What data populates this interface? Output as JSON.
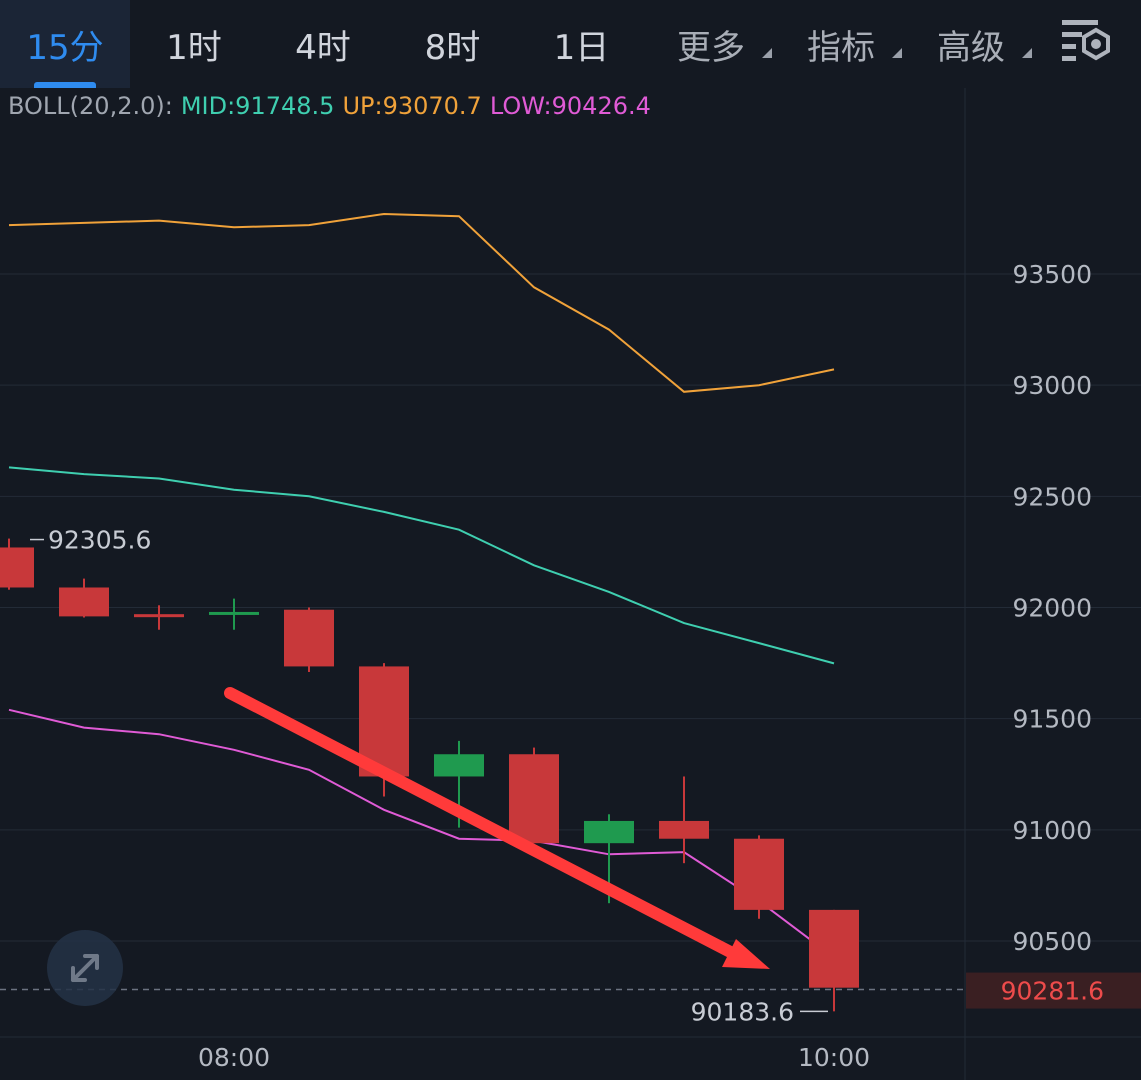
{
  "tabs": [
    {
      "label": "15分",
      "active": true,
      "caret": false
    },
    {
      "label": "1时",
      "active": false,
      "caret": false
    },
    {
      "label": "4时",
      "active": false,
      "caret": false
    },
    {
      "label": "8时",
      "active": false,
      "caret": false
    },
    {
      "label": "1日",
      "active": false,
      "caret": false
    },
    {
      "label": "更多",
      "active": false,
      "caret": true
    },
    {
      "label": "指标",
      "active": false,
      "caret": true
    },
    {
      "label": "高级",
      "active": false,
      "caret": true
    }
  ],
  "icons": {
    "settings": "chart-settings-icon",
    "expand": "expand-arrows-icon"
  },
  "colors": {
    "background": "#141922",
    "up_band": "#f0a23a",
    "mid_band": "#3fcfb0",
    "low_band": "#e05bd6",
    "bear": "#c8383a",
    "bull": "#1f9a4f",
    "active_tab": "#2f8cf0",
    "arrow": "#ff3a3a",
    "last_price_bg": "#3a1f22"
  },
  "legend": {
    "name": "BOLL(20,2.0):",
    "mid": "MID:91748.5",
    "up": "UP:93070.7",
    "low": "LOW:90426.4"
  },
  "chart_data": {
    "type": "candlestick",
    "y_ticks": [
      93500,
      93000,
      92500,
      92000,
      91500,
      91000,
      90500
    ],
    "y_tick_labels": [
      "93500",
      "93000",
      "92500",
      "92000",
      "91500",
      "91000",
      "90500"
    ],
    "x_labels": [
      {
        "label": "08:00",
        "index": 3
      },
      {
        "label": "10:00",
        "index": 11
      }
    ],
    "ylim": [
      90000,
      93970
    ],
    "grid": true,
    "candles": [
      {
        "open": 92270,
        "close": 92090,
        "high": 92310,
        "low": 92080
      },
      {
        "open": 92090,
        "close": 91960,
        "high": 92130,
        "low": 91955
      },
      {
        "open": 91970,
        "close": 91960,
        "high": 92010,
        "low": 91900
      },
      {
        "open": 91970,
        "close": 91980,
        "high": 92040,
        "low": 91900
      },
      {
        "open": 91990,
        "close": 91735,
        "high": 92000,
        "low": 91710
      },
      {
        "open": 91735,
        "close": 91240,
        "high": 91750,
        "low": 91150
      },
      {
        "open": 91240,
        "close": 91340,
        "high": 91400,
        "low": 91010
      },
      {
        "open": 91340,
        "close": 90940,
        "high": 91370,
        "low": 90940
      },
      {
        "open": 90940,
        "close": 91040,
        "high": 91070,
        "low": 90670
      },
      {
        "open": 91040,
        "close": 90960,
        "high": 91240,
        "low": 90850
      },
      {
        "open": 90960,
        "close": 90640,
        "high": 90975,
        "low": 90600
      },
      {
        "open": 90640,
        "close": 90290,
        "high": 90640,
        "low": 90183.6
      }
    ],
    "boll_up": [
      93720,
      93730,
      93740,
      93710,
      93720,
      93770,
      93760,
      93440,
      93250,
      92970,
      93000,
      93070.7
    ],
    "boll_mid": [
      92630,
      92600,
      92580,
      92530,
      92500,
      92430,
      92350,
      92190,
      92070,
      91930,
      91840,
      91748.5
    ],
    "boll_low": [
      91540,
      91460,
      91430,
      91360,
      91270,
      91090,
      90960,
      90950,
      90890,
      90900,
      90680,
      90426.4
    ],
    "high_marker": "92305.6",
    "low_marker": "90183.6",
    "last_price": "90281.6"
  }
}
